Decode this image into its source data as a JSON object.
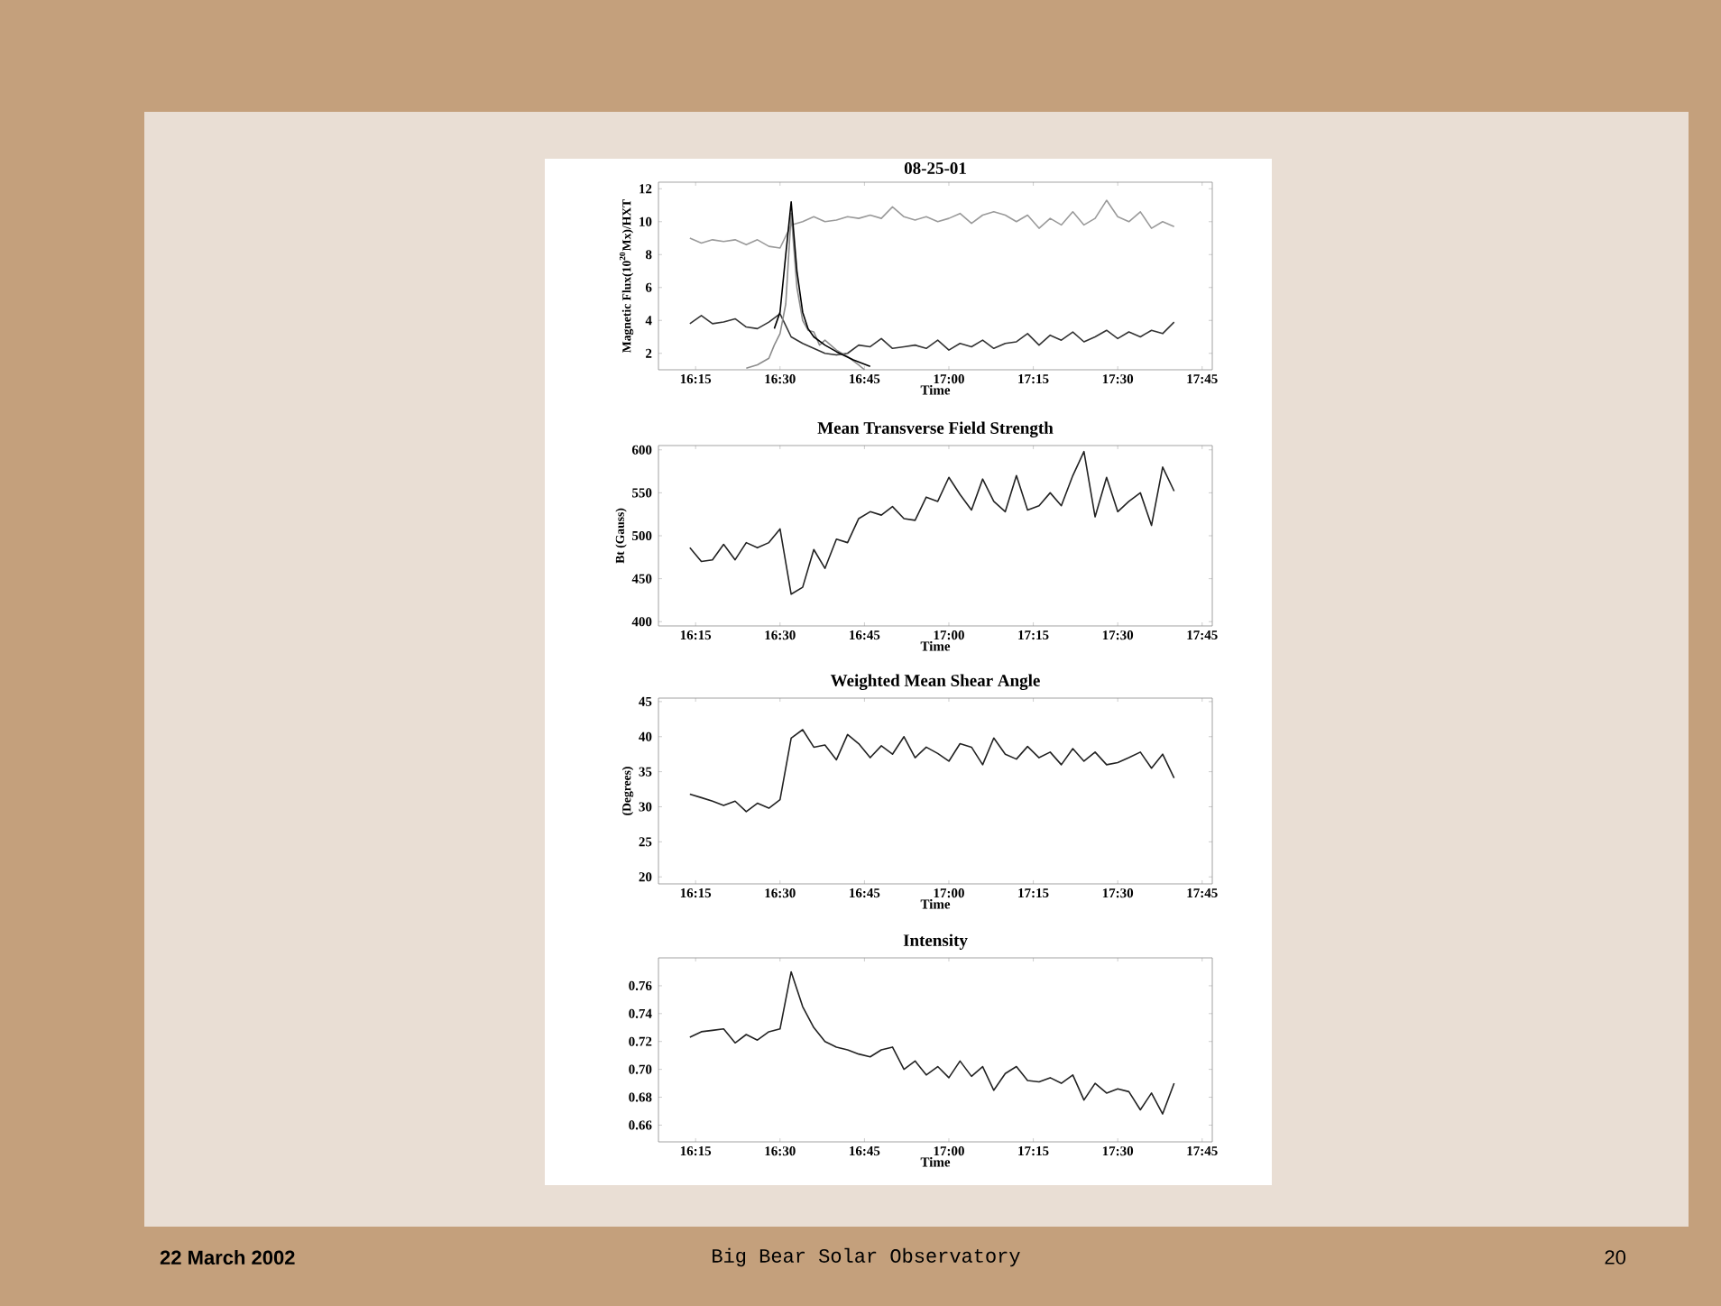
{
  "chart_data": [
    {
      "type": "line",
      "title": "08-25-01",
      "xlabel": "Time",
      "ylabel": "Magnetic Flux(10$^{20}$Mx)/HXT",
      "x": [
        16.233,
        16.267,
        16.3,
        16.333,
        16.367,
        16.4,
        16.433,
        16.467,
        16.5,
        16.533,
        16.567,
        16.6,
        16.633,
        16.667,
        16.7,
        16.733,
        16.767,
        16.8,
        16.833,
        16.867,
        16.9,
        16.933,
        16.967,
        17.0,
        17.033,
        17.067,
        17.1,
        17.133,
        17.167,
        17.2,
        17.233,
        17.267,
        17.3,
        17.333,
        17.367,
        17.4,
        17.433,
        17.467,
        17.5,
        17.533,
        17.567,
        17.6,
        17.633,
        17.667
      ],
      "xlim": [
        16.14,
        17.78
      ],
      "xticks": [
        {
          "value": 16.25,
          "label": "16:15"
        },
        {
          "value": 16.5,
          "label": "16:30"
        },
        {
          "value": 16.75,
          "label": "16:45"
        },
        {
          "value": 17.0,
          "label": "17:00"
        },
        {
          "value": 17.25,
          "label": "17:15"
        },
        {
          "value": 17.5,
          "label": "17:30"
        },
        {
          "value": 17.75,
          "label": "17:45"
        }
      ],
      "ylim": [
        1,
        12.4
      ],
      "yticks": [
        2,
        4,
        6,
        8,
        10,
        12
      ],
      "series": [
        {
          "color": "#9a9a9a",
          "values": [
            9.0,
            8.7,
            8.9,
            8.8,
            8.9,
            8.6,
            8.9,
            8.5,
            8.4,
            9.8,
            10.0,
            10.3,
            10.0,
            10.1,
            10.3,
            10.2,
            10.4,
            10.2,
            10.9,
            10.3,
            10.1,
            10.3,
            10.0,
            10.2,
            10.5,
            9.9,
            10.4,
            10.6,
            10.4,
            10.0,
            10.4,
            9.6,
            10.2,
            9.8,
            10.6,
            9.8,
            10.2,
            11.3,
            10.3,
            10.0,
            10.6,
            9.6,
            10.0,
            9.7
          ]
        },
        {
          "color": "#333333",
          "values": [
            3.8,
            4.3,
            3.8,
            3.9,
            4.1,
            3.6,
            3.5,
            3.9,
            4.4,
            3.0,
            2.6,
            2.3,
            2.0,
            1.9,
            2.0,
            2.5,
            2.4,
            2.9,
            2.3,
            2.4,
            2.5,
            2.3,
            2.8,
            2.2,
            2.6,
            2.4,
            2.8,
            2.3,
            2.6,
            2.7,
            3.2,
            2.5,
            3.1,
            2.8,
            3.3,
            2.7,
            3.0,
            3.4,
            2.9,
            3.3,
            3.0,
            3.4,
            3.2,
            3.9
          ]
        },
        {
          "color": "#8c8c8c",
          "x": [
            16.4,
            16.433,
            16.467,
            16.483,
            16.5,
            16.517,
            16.533,
            16.55,
            16.567,
            16.583,
            16.6,
            16.617,
            16.633,
            16.667,
            16.7,
            16.733,
            16.75
          ],
          "values": [
            1.1,
            1.3,
            1.7,
            2.5,
            3.2,
            5.0,
            10.5,
            6.0,
            4.0,
            3.4,
            3.3,
            2.5,
            2.8,
            2.2,
            1.8,
            1.3,
            1.0
          ]
        },
        {
          "color": "#000000",
          "x": [
            16.483,
            16.5,
            16.517,
            16.533,
            16.55,
            16.567,
            16.583,
            16.6,
            16.633,
            16.667,
            16.717,
            16.767
          ],
          "values": [
            3.5,
            4.5,
            8.0,
            11.2,
            7.0,
            4.5,
            3.5,
            3.0,
            2.5,
            2.1,
            1.6,
            1.2
          ]
        }
      ]
    },
    {
      "type": "line",
      "title": "Mean Transverse Field Strength",
      "xlabel": "Time",
      "ylabel": "Bt (Gauss)",
      "x": [
        16.233,
        16.267,
        16.3,
        16.333,
        16.367,
        16.4,
        16.433,
        16.467,
        16.5,
        16.533,
        16.567,
        16.6,
        16.633,
        16.667,
        16.7,
        16.733,
        16.767,
        16.8,
        16.833,
        16.867,
        16.9,
        16.933,
        16.967,
        17.0,
        17.033,
        17.067,
        17.1,
        17.133,
        17.167,
        17.2,
        17.233,
        17.267,
        17.3,
        17.333,
        17.367,
        17.4,
        17.433,
        17.467,
        17.5,
        17.533,
        17.567,
        17.6,
        17.633,
        17.667
      ],
      "xlim": [
        16.14,
        17.78
      ],
      "xticks": [
        {
          "value": 16.25,
          "label": "16:15"
        },
        {
          "value": 16.5,
          "label": "16:30"
        },
        {
          "value": 16.75,
          "label": "16:45"
        },
        {
          "value": 17.0,
          "label": "17:00"
        },
        {
          "value": 17.25,
          "label": "17:15"
        },
        {
          "value": 17.5,
          "label": "17:30"
        },
        {
          "value": 17.75,
          "label": "17:45"
        }
      ],
      "ylim": [
        395,
        605
      ],
      "yticks": [
        400,
        450,
        500,
        550,
        600
      ],
      "series": [
        {
          "color": "#222222",
          "values": [
            486,
            470,
            472,
            490,
            472,
            492,
            486,
            492,
            508,
            432,
            440,
            484,
            462,
            496,
            492,
            520,
            528,
            524,
            534,
            520,
            518,
            545,
            540,
            568,
            548,
            530,
            566,
            540,
            528,
            570,
            530,
            535,
            550,
            535,
            570,
            598,
            522,
            568,
            528,
            540,
            550,
            512,
            580,
            552
          ]
        }
      ]
    },
    {
      "type": "line",
      "title": "Weighted Mean Shear Angle",
      "xlabel": "Time",
      "ylabel": "(Degrees)",
      "x": [
        16.233,
        16.267,
        16.3,
        16.333,
        16.367,
        16.4,
        16.433,
        16.467,
        16.5,
        16.533,
        16.567,
        16.6,
        16.633,
        16.667,
        16.7,
        16.733,
        16.767,
        16.8,
        16.833,
        16.867,
        16.9,
        16.933,
        16.967,
        17.0,
        17.033,
        17.067,
        17.1,
        17.133,
        17.167,
        17.2,
        17.233,
        17.267,
        17.3,
        17.333,
        17.367,
        17.4,
        17.433,
        17.467,
        17.5,
        17.533,
        17.567,
        17.6,
        17.633,
        17.667
      ],
      "xlim": [
        16.14,
        17.78
      ],
      "xticks": [
        {
          "value": 16.25,
          "label": "16:15"
        },
        {
          "value": 16.5,
          "label": "16:30"
        },
        {
          "value": 16.75,
          "label": "16:45"
        },
        {
          "value": 17.0,
          "label": "17:00"
        },
        {
          "value": 17.25,
          "label": "17:15"
        },
        {
          "value": 17.5,
          "label": "17:30"
        },
        {
          "value": 17.75,
          "label": "17:45"
        }
      ],
      "ylim": [
        19,
        45.5
      ],
      "yticks": [
        20,
        25,
        30,
        35,
        40,
        45
      ],
      "series": [
        {
          "color": "#222222",
          "values": [
            31.8,
            31.3,
            30.8,
            30.2,
            30.8,
            29.3,
            30.5,
            29.8,
            31,
            39.8,
            41,
            38.5,
            38.8,
            36.7,
            40.3,
            39,
            37,
            38.7,
            37.5,
            40,
            37,
            38.5,
            37.6,
            36.5,
            39,
            38.5,
            36,
            39.8,
            37.5,
            36.8,
            38.6,
            37,
            37.8,
            36,
            38.3,
            36.5,
            37.8,
            36,
            36.3,
            37,
            37.8,
            35.5,
            37.5,
            34.1
          ]
        }
      ]
    },
    {
      "type": "line",
      "title": "Intensity",
      "xlabel": "Time",
      "x": [
        16.233,
        16.267,
        16.3,
        16.333,
        16.367,
        16.4,
        16.433,
        16.467,
        16.5,
        16.533,
        16.567,
        16.6,
        16.633,
        16.667,
        16.7,
        16.733,
        16.767,
        16.8,
        16.833,
        16.867,
        16.9,
        16.933,
        16.967,
        17.0,
        17.033,
        17.067,
        17.1,
        17.133,
        17.167,
        17.2,
        17.233,
        17.267,
        17.3,
        17.333,
        17.367,
        17.4,
        17.433,
        17.467,
        17.5,
        17.533,
        17.567,
        17.6,
        17.633,
        17.667
      ],
      "xlim": [
        16.14,
        17.78
      ],
      "xticks": [
        {
          "value": 16.25,
          "label": "16:15"
        },
        {
          "value": 16.5,
          "label": "16:30"
        },
        {
          "value": 16.75,
          "label": "16:45"
        },
        {
          "value": 17.0,
          "label": "17:00"
        },
        {
          "value": 17.25,
          "label": "17:15"
        },
        {
          "value": 17.5,
          "label": "17:30"
        },
        {
          "value": 17.75,
          "label": "17:45"
        }
      ],
      "ylim": [
        0.648,
        0.78
      ],
      "yticks": [
        {
          "value": 0.66,
          "label": "0.66"
        },
        {
          "value": 0.68,
          "label": "0.68"
        },
        {
          "value": 0.7,
          "label": "0.70"
        },
        {
          "value": 0.72,
          "label": "0.72"
        },
        {
          "value": 0.74,
          "label": "0.74"
        },
        {
          "value": 0.76,
          "label": "0.76"
        }
      ],
      "series": [
        {
          "color": "#222222",
          "values": [
            0.723,
            0.727,
            0.728,
            0.729,
            0.719,
            0.725,
            0.721,
            0.727,
            0.729,
            0.77,
            0.745,
            0.73,
            0.72,
            0.716,
            0.714,
            0.711,
            0.709,
            0.714,
            0.716,
            0.7,
            0.706,
            0.696,
            0.702,
            0.694,
            0.706,
            0.695,
            0.702,
            0.685,
            0.697,
            0.702,
            0.692,
            0.691,
            0.694,
            0.69,
            0.696,
            0.678,
            0.69,
            0.683,
            0.686,
            0.684,
            0.671,
            0.683,
            0.668,
            0.69
          ]
        }
      ],
      "annotations": [
        "22 March 2002",
        "Big Bear Solar Observatory",
        "20"
      ]
    }
  ]
}
